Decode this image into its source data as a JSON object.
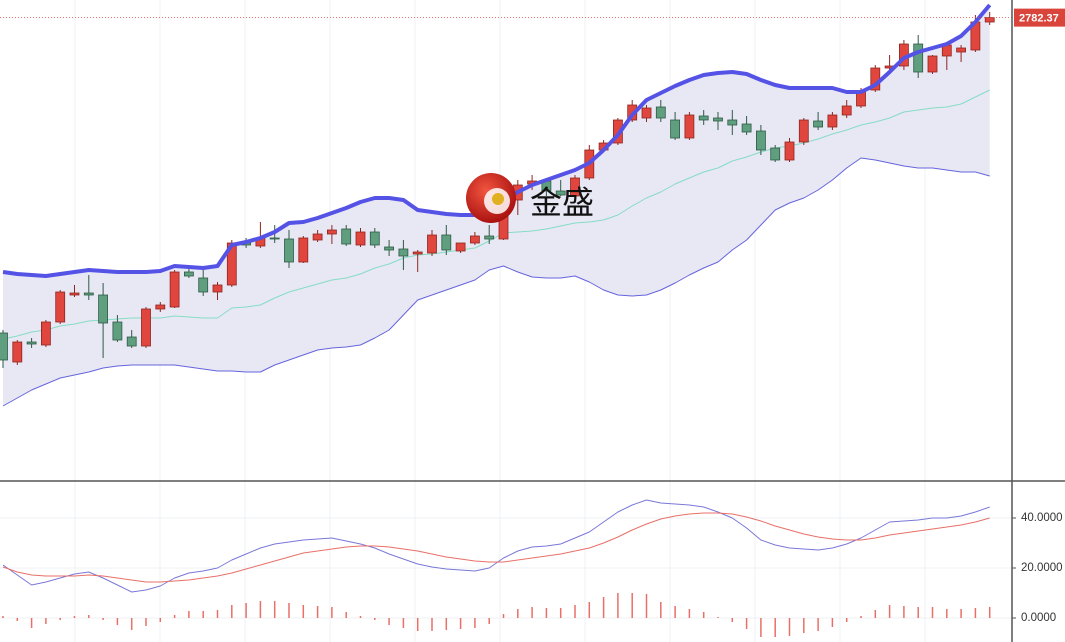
{
  "chart_data": [
    {
      "type": "candlestick",
      "watermark": "金盛",
      "last_price": 2782.37,
      "ylim": [
        2320,
        2800
      ],
      "up_color": "#e0463d",
      "down_color": "#5f9e7e",
      "grid": true,
      "open": [
        2467,
        2438,
        2458,
        2455,
        2478,
        2505,
        2507,
        2505,
        2478,
        2463,
        2454,
        2491,
        2493,
        2528,
        2522,
        2508,
        2515,
        2557,
        2554,
        2562,
        2561,
        2538,
        2560,
        2566,
        2571,
        2555,
        2568,
        2553,
        2551,
        2546,
        2547,
        2565,
        2549,
        2557,
        2564,
        2561,
        2600,
        2616,
        2619,
        2609,
        2604,
        2622,
        2650,
        2657,
        2680,
        2682,
        2693,
        2680,
        2662,
        2684,
        2682,
        2680,
        2676,
        2669,
        2652,
        2640,
        2658,
        2679,
        2673,
        2685,
        2694,
        2710,
        2732,
        2734,
        2756,
        2728,
        2744,
        2748,
        2750,
        2778
      ],
      "high": [
        2470,
        2460,
        2462,
        2480,
        2510,
        2515,
        2525,
        2517,
        2485,
        2470,
        2493,
        2498,
        2530,
        2532,
        2530,
        2518,
        2560,
        2562,
        2578,
        2575,
        2570,
        2564,
        2570,
        2575,
        2575,
        2572,
        2572,
        2560,
        2560,
        2550,
        2570,
        2575,
        2557,
        2568,
        2575,
        2605,
        2620,
        2625,
        2622,
        2620,
        2625,
        2655,
        2660,
        2682,
        2700,
        2695,
        2700,
        2688,
        2688,
        2690,
        2688,
        2690,
        2684,
        2675,
        2655,
        2662,
        2682,
        2688,
        2688,
        2700,
        2712,
        2735,
        2745,
        2760,
        2765,
        2745,
        2758,
        2755,
        2785,
        2788
      ],
      "low": [
        2432,
        2435,
        2452,
        2453,
        2476,
        2503,
        2500,
        2442,
        2458,
        2452,
        2452,
        2488,
        2492,
        2522,
        2504,
        2500,
        2513,
        2552,
        2552,
        2557,
        2532,
        2537,
        2558,
        2556,
        2554,
        2553,
        2552,
        2544,
        2530,
        2528,
        2544,
        2545,
        2547,
        2555,
        2556,
        2560,
        2585,
        2610,
        2604,
        2604,
        2602,
        2620,
        2648,
        2655,
        2678,
        2678,
        2678,
        2660,
        2660,
        2675,
        2670,
        2665,
        2665,
        2645,
        2638,
        2638,
        2655,
        2670,
        2670,
        2682,
        2692,
        2708,
        2728,
        2730,
        2722,
        2726,
        2730,
        2738,
        2748,
        2775
      ],
      "close": [
        2440,
        2458,
        2456,
        2478,
        2508,
        2507,
        2505,
        2477,
        2460,
        2454,
        2491,
        2495,
        2528,
        2524,
        2508,
        2515,
        2557,
        2555,
        2562,
        2561,
        2538,
        2562,
        2566,
        2570,
        2556,
        2568,
        2555,
        2550,
        2544,
        2548,
        2565,
        2550,
        2557,
        2564,
        2561,
        2600,
        2615,
        2619,
        2609,
        2605,
        2622,
        2650,
        2657,
        2680,
        2695,
        2692,
        2682,
        2662,
        2685,
        2680,
        2679,
        2675,
        2668,
        2650,
        2640,
        2658,
        2680,
        2673,
        2685,
        2694,
        2708,
        2732,
        2734,
        2756,
        2728,
        2744,
        2755,
        2752,
        2778,
        2782.37
      ],
      "bands": {
        "upper": [
          2528,
          2526,
          2525,
          2524,
          2526,
          2528,
          2530,
          2529,
          2528,
          2528,
          2528,
          2529,
          2534,
          2533,
          2532,
          2534,
          2555,
          2558,
          2562,
          2568,
          2577,
          2578,
          2582,
          2587,
          2592,
          2598,
          2602,
          2602,
          2600,
          2590,
          2588,
          2586,
          2585,
          2585,
          2588,
          2600,
          2608,
          2615,
          2620,
          2625,
          2630,
          2637,
          2650,
          2665,
          2685,
          2700,
          2707,
          2714,
          2720,
          2725,
          2727,
          2728,
          2726,
          2720,
          2715,
          2712,
          2712,
          2712,
          2712,
          2708,
          2708,
          2715,
          2728,
          2742,
          2748,
          2752,
          2756,
          2764,
          2778,
          2795
        ],
        "middle": [
          2461,
          2464,
          2468,
          2470,
          2474,
          2476,
          2479,
          2480,
          2481,
          2482,
          2482,
          2482,
          2484,
          2483,
          2482,
          2482,
          2492,
          2493,
          2495,
          2502,
          2508,
          2512,
          2516,
          2520,
          2522,
          2526,
          2532,
          2536,
          2542,
          2545,
          2546,
          2548,
          2550,
          2552,
          2559,
          2567,
          2568,
          2569,
          2571,
          2574,
          2577,
          2578,
          2580,
          2585,
          2594,
          2602,
          2608,
          2616,
          2622,
          2628,
          2632,
          2639,
          2643,
          2648,
          2652,
          2654,
          2657,
          2661,
          2666,
          2670,
          2675,
          2678,
          2682,
          2688,
          2690,
          2692,
          2693,
          2696,
          2703,
          2710
        ],
        "lower": [
          2394,
          2402,
          2410,
          2416,
          2422,
          2425,
          2428,
          2432,
          2434,
          2435,
          2435,
          2435,
          2435,
          2433,
          2431,
          2429,
          2429,
          2428,
          2428,
          2435,
          2440,
          2445,
          2450,
          2452,
          2453,
          2455,
          2462,
          2470,
          2485,
          2500,
          2505,
          2510,
          2515,
          2520,
          2530,
          2534,
          2528,
          2523,
          2522,
          2522,
          2524,
          2518,
          2510,
          2505,
          2504,
          2505,
          2510,
          2517,
          2525,
          2532,
          2538,
          2550,
          2560,
          2575,
          2590,
          2597,
          2602,
          2610,
          2620,
          2632,
          2642,
          2640,
          2637,
          2634,
          2632,
          2632,
          2630,
          2628,
          2628,
          2624
        ],
        "upper_color": "#5552e6",
        "middle_color": "#86dcc4",
        "lower_color": "#6664dc",
        "fill": "#e6e6f4"
      }
    },
    {
      "type": "line",
      "ylim": [
        -9.6,
        54.4
      ],
      "yticks": [
        {
          "value": 0,
          "label": "0.0000"
        },
        {
          "value": 20,
          "label": "20.0000"
        },
        {
          "value": 40,
          "label": "40.0000"
        }
      ],
      "series": [
        {
          "color": "#7a78d8",
          "values": [
            21.2,
            17.2,
            13.2,
            14.4,
            16,
            17.6,
            18.4,
            16,
            13.2,
            10.4,
            11.2,
            12.8,
            16,
            18,
            18.8,
            20,
            23.2,
            25.6,
            28,
            29.6,
            30.4,
            31.2,
            31.6,
            32,
            30.8,
            29.6,
            28,
            25.6,
            23.6,
            21.6,
            20.4,
            19.6,
            19.2,
            18.8,
            20,
            24,
            26.8,
            28.4,
            28.8,
            29.6,
            32,
            34.4,
            38.4,
            42.4,
            45.2,
            47.2,
            46,
            45.6,
            45.2,
            44.4,
            42.4,
            40,
            36,
            31.2,
            29.2,
            28,
            27.6,
            27.2,
            28,
            29.6,
            32,
            35.2,
            38.4,
            38.8,
            39.2,
            40,
            40,
            40.8,
            42.4,
            44.4
          ]
        },
        {
          "color": "#e87068",
          "values": [
            20.4,
            18.4,
            17.2,
            16.8,
            16.8,
            16.8,
            17.2,
            16.8,
            16,
            15.2,
            14.4,
            14.4,
            14.8,
            15.2,
            16,
            16.8,
            18,
            19.6,
            21.2,
            22.8,
            24.4,
            26,
            26.8,
            27.6,
            28.4,
            28.8,
            28.8,
            28.4,
            27.6,
            26.8,
            25.6,
            24.4,
            23.6,
            22.8,
            22.4,
            22.4,
            23.2,
            24,
            24.8,
            25.6,
            26.8,
            28,
            30,
            32.4,
            35.2,
            37.6,
            39.6,
            40.8,
            41.6,
            42,
            42,
            41.6,
            40.4,
            38.8,
            36.8,
            35.2,
            33.6,
            32.4,
            31.6,
            31.2,
            31.2,
            32,
            33.2,
            34,
            34.8,
            35.6,
            36.4,
            37.2,
            38.4,
            40
          ]
        }
      ],
      "histogram": {
        "color": "#e87068",
        "values": [
          0.8,
          -1.2,
          -4,
          -2.4,
          -0.8,
          0.8,
          1.2,
          -0.8,
          -2.8,
          -4.8,
          -3.2,
          -1.6,
          1.2,
          2.8,
          2.8,
          3.2,
          5.2,
          6,
          6.8,
          6.8,
          6,
          5.2,
          4.8,
          4.4,
          2.4,
          0.8,
          -0.8,
          -2.8,
          -4,
          -5.2,
          -5.2,
          -4.8,
          -4.4,
          -4,
          -2.4,
          1.6,
          3.6,
          4.4,
          4,
          4,
          5.2,
          6.4,
          8.4,
          10,
          10,
          9.6,
          6.4,
          4.8,
          3.6,
          2.4,
          0.4,
          -1.6,
          -4.4,
          -7.6,
          -7.6,
          -7.2,
          -6,
          -5.2,
          -3.6,
          -1.6,
          0.8,
          3.2,
          5.2,
          4.8,
          4.4,
          4.4,
          3.6,
          3.6,
          4,
          4.4
        ]
      }
    }
  ]
}
